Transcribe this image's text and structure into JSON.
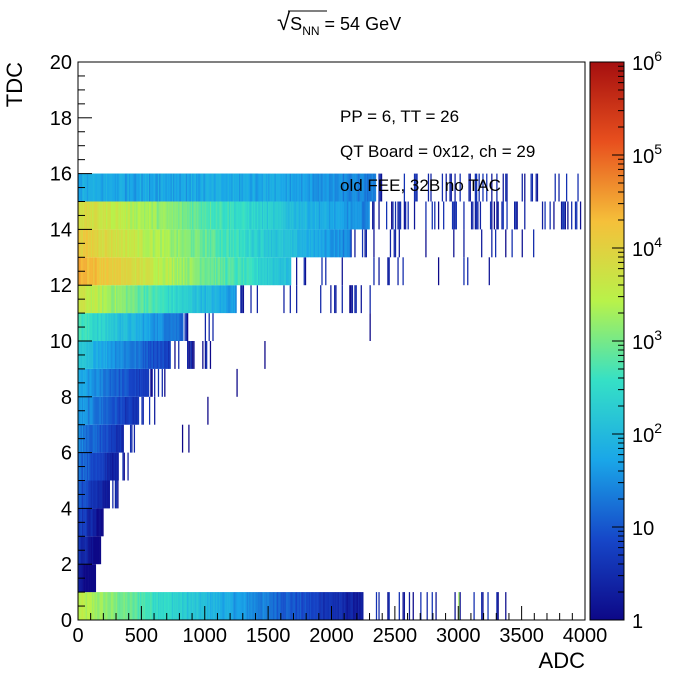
{
  "chart_data": {
    "type": "heatmap",
    "title": "√S_NN = 54 GeV",
    "title_parts": {
      "root_symbol": "√",
      "s": "S",
      "sub": "NN",
      "rest": " = 54 GeV"
    },
    "xlabel": "ADC",
    "ylabel": "TDC",
    "xlim": [
      0,
      4000
    ],
    "ylim": [
      0,
      20
    ],
    "x_ticks": [
      0,
      500,
      1000,
      1500,
      2000,
      2500,
      3000,
      3500,
      4000
    ],
    "x_tick_labels": [
      "0",
      "500",
      "1000",
      "1500",
      "2000",
      "2500",
      "3000",
      "3500",
      "4000"
    ],
    "y_ticks": [
      0,
      2,
      4,
      6,
      8,
      10,
      12,
      14,
      16,
      18,
      20
    ],
    "y_tick_labels": [
      "0",
      "2",
      "4",
      "6",
      "8",
      "10",
      "12",
      "14",
      "16",
      "18",
      "20"
    ],
    "z_scale": "log",
    "zlim": [
      1,
      1000000
    ],
    "z_ticks": [
      {
        "value": 1,
        "base": "1",
        "exp": ""
      },
      {
        "value": 10,
        "base": "10",
        "exp": ""
      },
      {
        "value": 100,
        "base": "10",
        "exp": "2"
      },
      {
        "value": 1000,
        "base": "10",
        "exp": "3"
      },
      {
        "value": 10000,
        "base": "10",
        "exp": "4"
      },
      {
        "value": 100000,
        "base": "10",
        "exp": "5"
      },
      {
        "value": 1000000,
        "base": "10",
        "exp": "6"
      }
    ],
    "colormap": [
      "#0d0887",
      "#1646c8",
      "#1aa6e8",
      "#35e0c6",
      "#b8f24a",
      "#f5c03a",
      "#e8501e",
      "#a50f0f"
    ],
    "annotations": [
      "PP = 6, TT = 26",
      "QT Board = 0x12, ch = 29",
      "old FEE, 32B no TAC"
    ],
    "grid": false,
    "rows": [
      {
        "tdc": 0,
        "peak": 3000,
        "decay": 300,
        "xmax": 2250,
        "sparse_to": 3400,
        "sparse_density": 0.25,
        "spikes": [
          [
            3000,
            2000
          ]
        ]
      },
      {
        "tdc": 1,
        "peak": 3,
        "decay": 60,
        "xmax": 140,
        "sparse_to": 0,
        "sparse_density": 0,
        "spikes": []
      },
      {
        "tdc": 2,
        "peak": 5,
        "decay": 80,
        "xmax": 180,
        "sparse_to": 0,
        "sparse_density": 0,
        "spikes": []
      },
      {
        "tdc": 3,
        "peak": 8,
        "decay": 90,
        "xmax": 200,
        "sparse_to": 0,
        "sparse_density": 0,
        "spikes": []
      },
      {
        "tdc": 4,
        "peak": 12,
        "decay": 110,
        "xmax": 250,
        "sparse_to": 320,
        "sparse_density": 0.3,
        "spikes": []
      },
      {
        "tdc": 5,
        "peak": 20,
        "decay": 130,
        "xmax": 320,
        "sparse_to": 420,
        "sparse_density": 0.3,
        "spikes": []
      },
      {
        "tdc": 6,
        "peak": 30,
        "decay": 160,
        "xmax": 360,
        "sparse_to": 470,
        "sparse_density": 0.3,
        "spikes": []
      },
      {
        "tdc": 7,
        "peak": 45,
        "decay": 180,
        "xmax": 480,
        "sparse_to": 620,
        "sparse_density": 0.3,
        "spikes": []
      },
      {
        "tdc": 8,
        "peak": 60,
        "decay": 200,
        "xmax": 560,
        "sparse_to": 700,
        "sparse_density": 0.3,
        "spikes": []
      },
      {
        "tdc": 9,
        "peak": 150,
        "decay": 220,
        "xmax": 730,
        "sparse_to": 1050,
        "sparse_density": 0.25,
        "spikes": []
      },
      {
        "tdc": 10,
        "peak": 500,
        "decay": 240,
        "xmax": 830,
        "sparse_to": 1120,
        "sparse_density": 0.25,
        "spikes": []
      },
      {
        "tdc": 11,
        "peak": 5000,
        "decay": 260,
        "xmax": 1250,
        "sparse_to": 2320,
        "sparse_density": 0.15,
        "spikes": []
      },
      {
        "tdc": 12,
        "peak": 30000,
        "decay": 300,
        "xmax": 1680,
        "sparse_to": 3300,
        "sparse_density": 0.12,
        "spikes": []
      },
      {
        "tdc": 13,
        "peak": 15000,
        "decay": 340,
        "xmax": 2150,
        "sparse_to": 3600,
        "sparse_density": 0.15,
        "spikes": []
      },
      {
        "tdc": 14,
        "peak": 8000,
        "decay": 400,
        "xmax": 2300,
        "sparse_to": 4000,
        "sparse_density": 0.3,
        "spikes": []
      },
      {
        "tdc": 15,
        "peak": 400,
        "decay": 800,
        "xmax": 2350,
        "sparse_to": 3950,
        "sparse_density": 0.25,
        "spikes": []
      },
      {
        "tdc": 16,
        "peak": 1,
        "decay": 1000,
        "xmax": 0,
        "sparse_to": 0,
        "sparse_density": 0,
        "spikes": []
      },
      {
        "tdc": 17,
        "peak": 1,
        "decay": 1000,
        "xmax": 0,
        "sparse_to": 0,
        "sparse_density": 0,
        "spikes": []
      },
      {
        "tdc": 18,
        "peak": 1,
        "decay": 1000,
        "xmax": 0,
        "sparse_to": 0,
        "sparse_density": 0,
        "spikes": []
      },
      {
        "tdc": 19,
        "peak": 1,
        "decay": 1000,
        "xmax": 0,
        "sparse_to": 0,
        "sparse_density": 0,
        "spikes": []
      }
    ],
    "flat_band": {
      "tdc_from": 15,
      "tdc_to": 16,
      "value": 60,
      "xmax": 1420
    },
    "isolated_bins": [
      {
        "x": 2300,
        "tdc": 10,
        "h": 1
      },
      {
        "x": 1470,
        "tdc": 9,
        "h": 1
      },
      {
        "x": 1250,
        "tdc": 8,
        "h": 1
      },
      {
        "x": 1020,
        "tdc": 7,
        "h": 1
      },
      {
        "x": 820,
        "tdc": 6,
        "h": 1
      },
      {
        "x": 870,
        "tdc": 6,
        "h": 1
      }
    ]
  }
}
